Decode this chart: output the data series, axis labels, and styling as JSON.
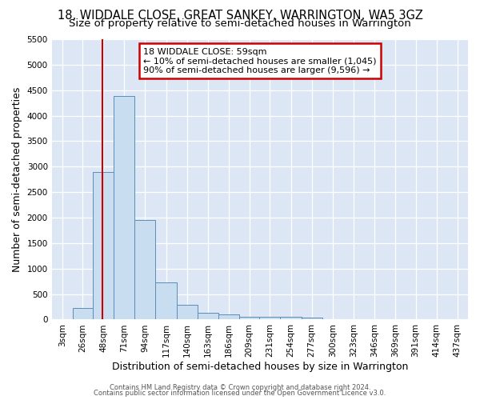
{
  "title1": "18, WIDDALE CLOSE, GREAT SANKEY, WARRINGTON, WA5 3GZ",
  "title2": "Size of property relative to semi-detached houses in Warrington",
  "xlabel": "Distribution of semi-detached houses by size in Warrington",
  "ylabel": "Number of semi-detached properties",
  "annotation_line1": "18 WIDDALE CLOSE: 59sqm",
  "annotation_line2": "← 10% of semi-detached houses are smaller (1,045)",
  "annotation_line3": "90% of semi-detached houses are larger (9,596) →",
  "footer1": "Contains HM Land Registry data © Crown copyright and database right 2024.",
  "footer2": "Contains public sector information licensed under the Open Government Licence v3.0.",
  "bar_edges": [
    3,
    26,
    48,
    71,
    94,
    117,
    140,
    163,
    186,
    209,
    231,
    254,
    277,
    300,
    323,
    346,
    369,
    391,
    414,
    437,
    460
  ],
  "bar_heights": [
    0,
    230,
    2900,
    4380,
    1950,
    730,
    295,
    140,
    100,
    60,
    50,
    55,
    45,
    0,
    0,
    0,
    0,
    0,
    0,
    0
  ],
  "bar_color": "#c9ddf0",
  "bar_edge_color": "#5b8db8",
  "vline_x": 59,
  "vline_color": "#cc0000",
  "annotation_box_edge": "#cc0000",
  "ylim": [
    0,
    5500
  ],
  "yticks": [
    0,
    500,
    1000,
    1500,
    2000,
    2500,
    3000,
    3500,
    4000,
    4500,
    5000,
    5500
  ],
  "fig_bg_color": "#ffffff",
  "plot_bg_color": "#dce6f5",
  "grid_color": "#ffffff",
  "title_fontsize": 10.5,
  "subtitle_fontsize": 9.5,
  "axis_label_fontsize": 9,
  "tick_fontsize": 7.5,
  "footer_fontsize": 6,
  "annotation_fontsize": 8
}
